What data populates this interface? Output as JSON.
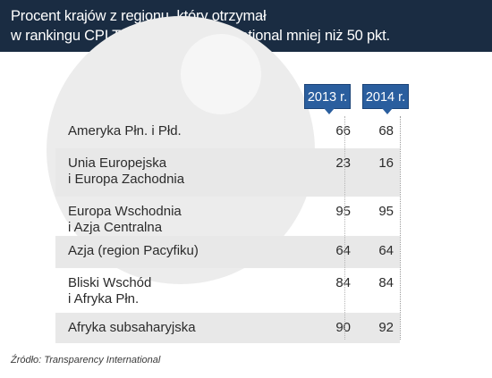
{
  "header": {
    "title_line1": "Procent krajów z regionu, który otrzymał",
    "title_line2": "w rankingu CPI Transparency International mniej niż 50 pkt."
  },
  "colors": {
    "title_band": "#1a2c42",
    "badge": "#2a5e9e",
    "row_shade": "#e8e8e8"
  },
  "chart_data": {
    "type": "table",
    "title": "Procent krajów z regionu, który otrzymał w rankingu CPI Transparency International mniej niż 50 pkt.",
    "columns": [
      "2013 r.",
      "2014 r."
    ],
    "rows": [
      {
        "label_lines": [
          "Ameryka Płn. i Płd."
        ],
        "values": [
          "66",
          "68"
        ]
      },
      {
        "label_lines": [
          "Unia Europejska",
          "i Europa Zachodnia"
        ],
        "values": [
          "23",
          "16"
        ]
      },
      {
        "label_lines": [
          "Europa Wschodnia",
          "i Azja Centralna"
        ],
        "values": [
          "95",
          "95"
        ]
      },
      {
        "label_lines": [
          "Azja (region Pacyfiku)"
        ],
        "values": [
          "64",
          "64"
        ]
      },
      {
        "label_lines": [
          "Bliski Wschód",
          "i Afryka Płn."
        ],
        "values": [
          "84",
          "84"
        ]
      },
      {
        "label_lines": [
          "Afryka subsaharyjska"
        ],
        "values": [
          "90",
          "92"
        ]
      }
    ]
  },
  "footer": {
    "source": "Źródło: Transparency International"
  }
}
